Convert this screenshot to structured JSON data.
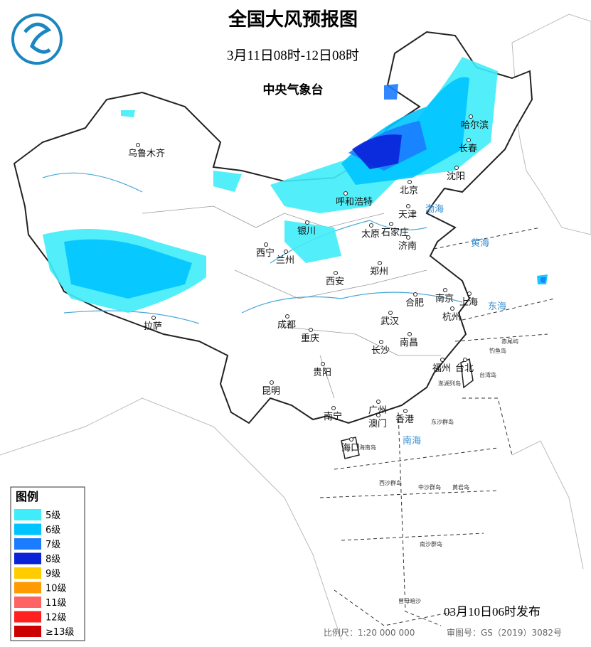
{
  "header": {
    "title": "全国大风预报图",
    "subtitle": "3月11日08时-12日08时",
    "issuer": "中央气象台"
  },
  "legend": {
    "title": "图例",
    "items": [
      {
        "label": "5级",
        "color": "#3fecf8"
      },
      {
        "label": "6级",
        "color": "#00c4ff"
      },
      {
        "label": "7级",
        "color": "#1c7cff"
      },
      {
        "label": "8级",
        "color": "#0a22d8"
      },
      {
        "label": "9级",
        "color": "#ffcc00"
      },
      {
        "label": "10级",
        "color": "#ff9a00"
      },
      {
        "label": "11级",
        "color": "#ff6464"
      },
      {
        "label": "12级",
        "color": "#ff2020"
      },
      {
        "label": "≥13级",
        "color": "#cc0000"
      }
    ]
  },
  "cities": [
    "乌鲁木齐",
    "哈尔滨",
    "长春",
    "沈阳",
    "北京",
    "天津",
    "呼和浩特",
    "银川",
    "太原",
    "石家庄",
    "济南",
    "西宁",
    "兰州",
    "郑州",
    "西安",
    "南京",
    "上海",
    "合肥",
    "杭州",
    "成都",
    "武汉",
    "重庆",
    "长沙",
    "南昌",
    "拉萨",
    "福州",
    "台北",
    "贵阳",
    "昆明",
    "南宁",
    "广州",
    "香港",
    "澳门",
    "海口"
  ],
  "seas": [
    "渤海",
    "黄海",
    "东海",
    "南海"
  ],
  "islands": [
    "赤尾屿",
    "钓鱼岛",
    "台湾岛",
    "澎湖列岛",
    "东沙群岛",
    "海南岛",
    "西沙群岛",
    "中沙群岛",
    "黄岩岛",
    "南沙群岛",
    "曾母暗沙"
  ],
  "footer": {
    "issued": "03月10日06时发布",
    "scale": "比例尺：1:20 000 000",
    "review": "审图号：GS（2019）3082号"
  }
}
